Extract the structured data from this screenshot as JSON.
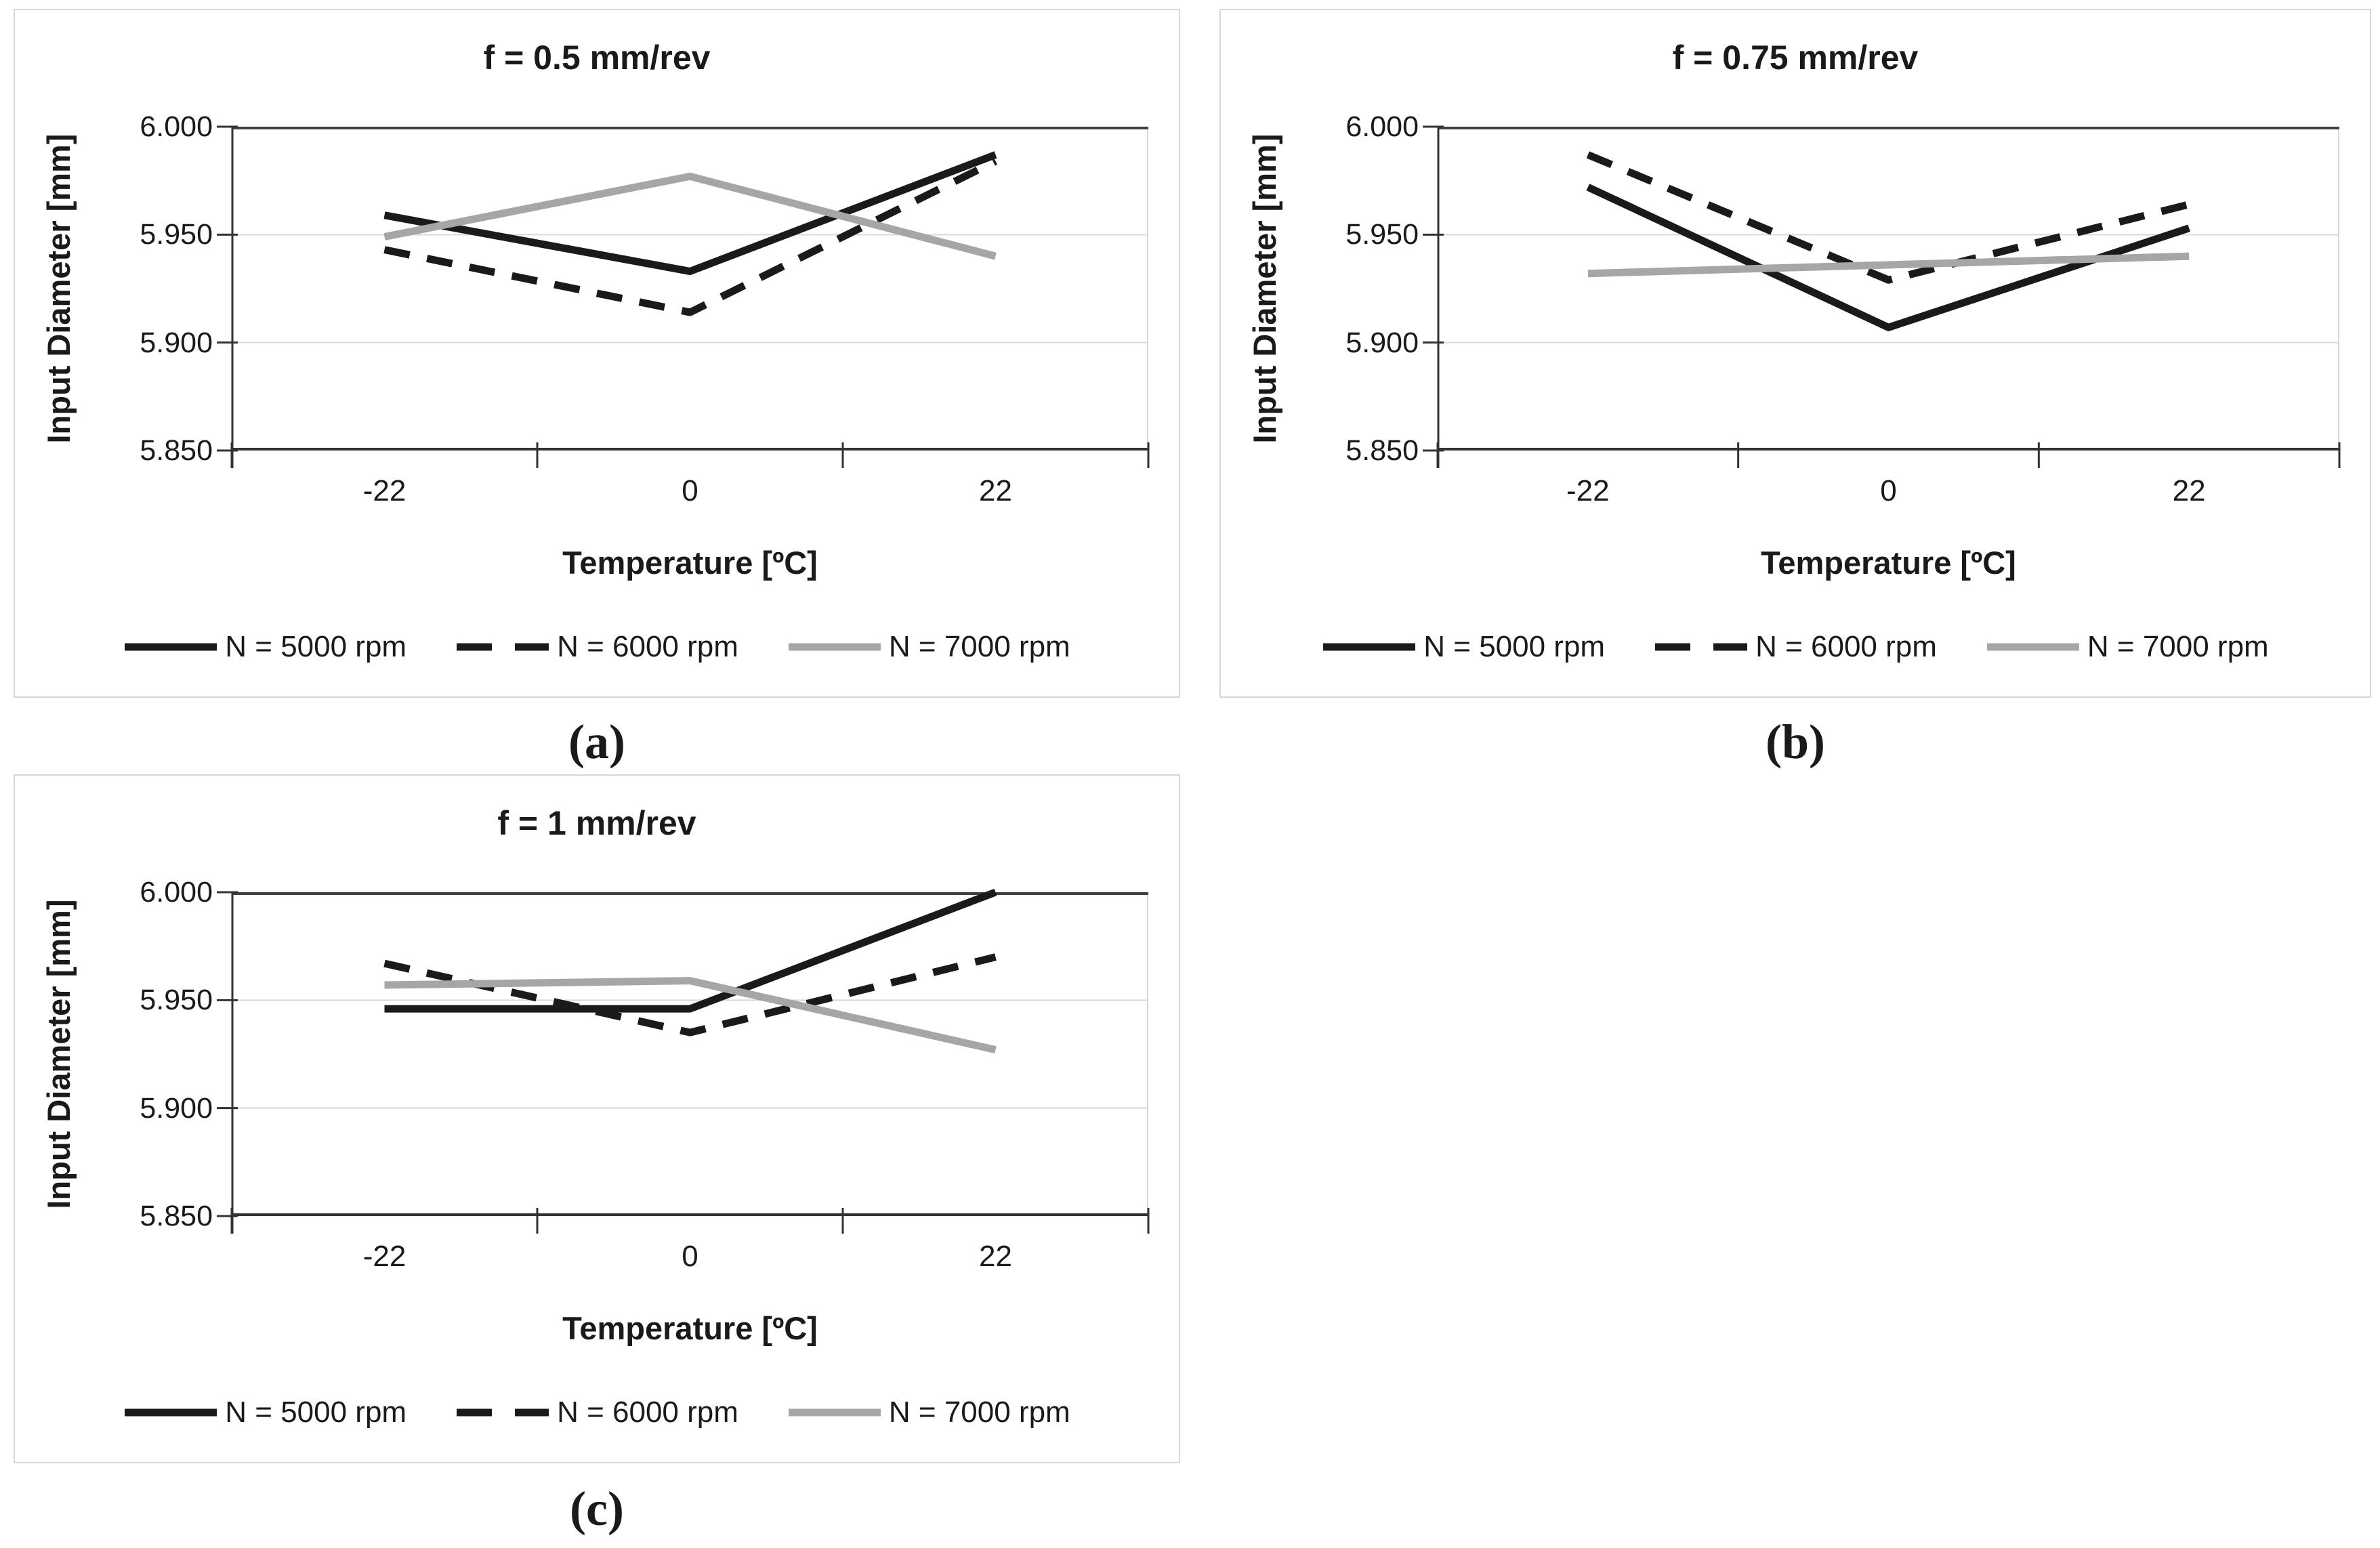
{
  "figure": {
    "captions": [
      "(a)",
      "(b)",
      "(c)"
    ]
  },
  "colors": {
    "series_black": "#1a1a1a",
    "series_gray": "#a6a6a6",
    "gridline": "#d9d9d9",
    "axis_dark": "#333333",
    "plot_top_border": "#404040",
    "plot_right_border": "#d9d9d9",
    "panel_border": "#d6d6d6",
    "background": "#ffffff",
    "text": "#1a1a1a"
  },
  "chart_data": [
    {
      "type": "line",
      "title": "f = 0.5 mm/rev",
      "xlabel": "Temperature [ºC]",
      "ylabel": "Input Diameter [mm]",
      "categories": [
        "-22",
        "0",
        "22"
      ],
      "yticks": [
        "6.000",
        "5.950",
        "5.900",
        "5.850"
      ],
      "ylim": [
        5.85,
        6.0
      ],
      "grid": "horizontal-major",
      "legend_position": "bottom",
      "series": [
        {
          "name": "N = 5000 rpm",
          "style": "solid-black",
          "values": [
            5.959,
            5.933,
            5.987
          ]
        },
        {
          "name": "N = 6000 rpm",
          "style": "dashed-black",
          "values": [
            5.943,
            5.914,
            5.984
          ]
        },
        {
          "name": "N = 7000 rpm",
          "style": "solid-gray",
          "values": [
            5.949,
            5.977,
            5.94
          ]
        }
      ]
    },
    {
      "type": "line",
      "title": "f = 0.75 mm/rev",
      "xlabel": "Temperature [ºC]",
      "ylabel": "Input Diameter [mm]",
      "categories": [
        "-22",
        "0",
        "22"
      ],
      "yticks": [
        "6.000",
        "5.950",
        "5.900",
        "5.850"
      ],
      "ylim": [
        5.85,
        6.0
      ],
      "grid": "horizontal-major",
      "legend_position": "bottom",
      "series": [
        {
          "name": "N = 5000 rpm",
          "style": "solid-black",
          "values": [
            5.972,
            5.907,
            5.953
          ]
        },
        {
          "name": "N = 6000 rpm",
          "style": "dashed-black",
          "values": [
            5.987,
            5.929,
            5.964
          ]
        },
        {
          "name": "N = 7000 rpm",
          "style": "solid-gray",
          "values": [
            5.932,
            5.936,
            5.94
          ]
        }
      ]
    },
    {
      "type": "line",
      "title": "f = 1 mm/rev",
      "xlabel": "Temperature [ºC]",
      "ylabel": "Input Diameter [mm]",
      "categories": [
        "-22",
        "0",
        "22"
      ],
      "yticks": [
        "6.000",
        "5.950",
        "5.900",
        "5.850"
      ],
      "ylim": [
        5.85,
        6.0
      ],
      "grid": "horizontal-major",
      "legend_position": "bottom",
      "series": [
        {
          "name": "N = 5000 rpm",
          "style": "solid-black",
          "values": [
            5.946,
            5.946,
            6.0
          ]
        },
        {
          "name": "N = 6000 rpm",
          "style": "dashed-black",
          "values": [
            5.967,
            5.935,
            5.97
          ]
        },
        {
          "name": "N = 7000 rpm",
          "style": "solid-gray",
          "values": [
            5.957,
            5.959,
            5.927
          ]
        }
      ]
    }
  ]
}
